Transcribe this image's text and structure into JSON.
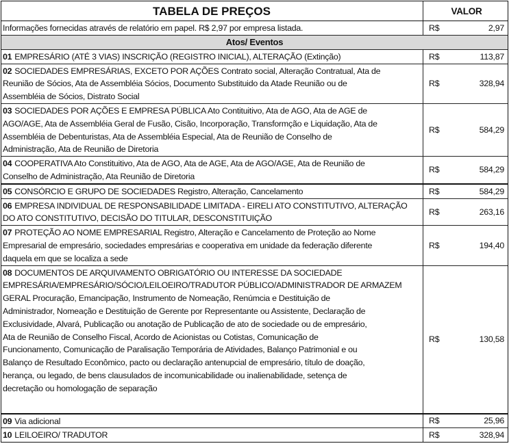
{
  "header": {
    "title": "TABELA DE PREÇOS",
    "value_label": "VALOR"
  },
  "info_row": {
    "text": "Informações fornecidas através de relatório em papel. R$ 2,97 por empresa listada.",
    "currency": "R$",
    "value": "2,97"
  },
  "section_title": "Atos/ Eventos",
  "rows": [
    {
      "code": "01",
      "lines": [
        "EMPRESÁRIO (ATÉ 3 VIAS) INSCRIÇÃO (REGISTRO INICIAL), ALTERAÇÃO (Extinção)"
      ],
      "currency": "R$",
      "value": "113,87"
    },
    {
      "code": "02",
      "lines": [
        "SOCIEDADES EMPRESÁRIAS, EXCETO POR AÇÕES Contrato social, Alteração Contratual, Ata de",
        "Reunião de Sócios, Ata de Assembléia Sócios, Documento Substituido da Atade Reunião ou de",
        "Assembléia de Sócios, Distrato Social"
      ],
      "currency": "R$",
      "value": "328,94"
    },
    {
      "code": "03",
      "lines": [
        "SOCIEDADES POR AÇÕES E EMPRESA PÚBLICA Ato Contituitivo, Ata de AGO, Ata de AGE de",
        "AGO/AGE, Ata de Assembléia Geral de Fusão, Cisão, Incorporação, Transformção e Liquidação, Ata de",
        "Assembléia de Debenturistas, Ata de Assembléia Especial, Ata de Reunião de Conselho de",
        "Administração, Ata de Reunião de Diretoria"
      ],
      "currency": "R$",
      "value": "584,29"
    },
    {
      "code": "04",
      "lines": [
        "COOPERATIVA Ato Constituitivo, Ata de AGO, Ata de AGE, Ata de AGO/AGE, Ata de Reunião de",
        "Conselho de Administração, Ata Reunião de Diretoria"
      ],
      "currency": "R$",
      "value": "584,29"
    },
    {
      "code": "05",
      "lines": [
        "CONSÓRCIO E GRUPO DE SOCIEDADES Registro, Alteração, Cancelamento"
      ],
      "currency": "R$",
      "value": "584,29"
    },
    {
      "code": "06",
      "lines": [
        "EMPRESA INDIVIDUAL DE RESPONSABILIDADE LIMITADA - EIRELI ATO CONSTITUTIVO, ALTERAÇÃO",
        "DO ATO CONSTITUTIVO, DECISÃO DO TITULAR, DESCONSTITUIÇÃO"
      ],
      "currency": "R$",
      "value": "263,16"
    },
    {
      "code": "07",
      "lines": [
        "PROTEÇÃO AO NOME EMPRESARIAL Registro, Alteração e Cancelamento de Proteção ao Nome",
        "Empresarial de empresário, sociedades empresárias e cooperativa em unidade da federação diferente",
        "daquela em que se localiza a sede"
      ],
      "currency": "R$",
      "value": "194,40"
    },
    {
      "code": "08",
      "lines": [
        "DOCUMENTOS DE ARQUIVAMENTO OBRIGATÓRIO OU INTERESSE DA SOCIEDADE",
        "EMPRESÁRIA/EMPRESÁRIO/SÓCIO/LEILOEIRO/TRADUTOR PÚBLICO/ADMINISTRADOR DE ARMAZEM",
        "GERAL Procuração, Emancipação, Instrumento de Nomeação, Renúmcia e Destituição de",
        "Administrador, Nomeação e Destituição de Gerente por Representante ou Assistente, Declaração de",
        "Exclusividade, Alvará, Publicação ou anotação de Publicação de ato de sociedade ou de empresário,",
        "Ata de Reunião de Conselho Fiscal, Acordo de Acionistas ou Cotistas, Comunicação de",
        "Funcionamento, Comunicação de Paralisação Temporária de Atividades, Balanço Patrimonial e ou",
        "Balanço de Resultado Econômico, pacto ou declaração antenupcial de empresário, título de doação,",
        "herança, ou legado, de bens clausulados de incomunicabilidade ou inalienabilidade, setença de",
        "decretação ou homologação de separação"
      ],
      "currency": "R$",
      "value": "130,58"
    },
    {
      "code": "09",
      "lines": [
        "Via adicional"
      ],
      "currency": "R$",
      "value": "25,96"
    },
    {
      "code": "10",
      "lines": [
        "LEILOEIRO/ TRADUTOR"
      ],
      "currency": "R$",
      "value": "328,94"
    }
  ]
}
